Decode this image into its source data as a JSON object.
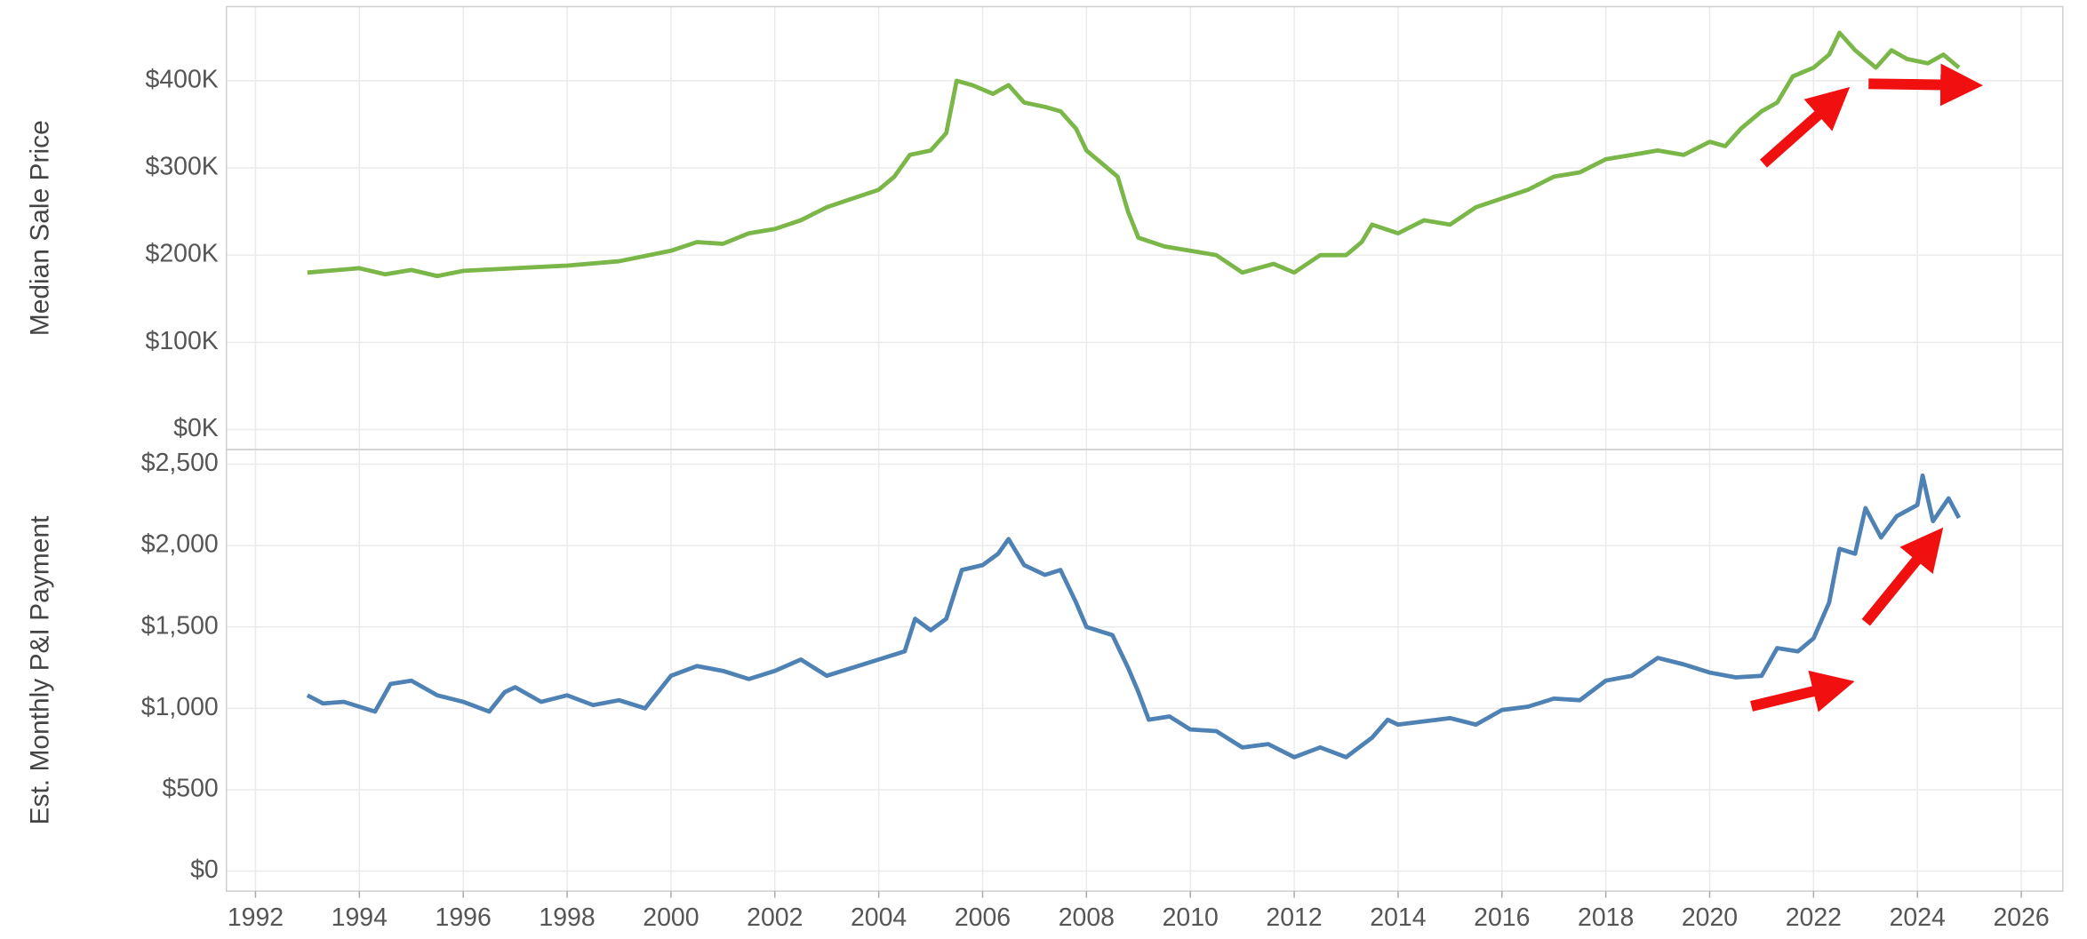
{
  "chart_data": [
    {
      "type": "line",
      "ylabel": "Median Sale Price",
      "xlim": [
        1991.44,
        2026.8
      ],
      "ylim": [
        -23000,
        485000
      ],
      "xticks": [
        1992,
        1994,
        1996,
        1998,
        2000,
        2002,
        2004,
        2006,
        2008,
        2010,
        2012,
        2014,
        2016,
        2018,
        2020,
        2022,
        2024,
        2026
      ],
      "yticks": [
        {
          "value": 0,
          "label": "$0K"
        },
        {
          "value": 100000,
          "label": "$100K"
        },
        {
          "value": 200000,
          "label": "$200K"
        },
        {
          "value": 300000,
          "label": "$300K"
        },
        {
          "value": 400000,
          "label": "$400K"
        }
      ],
      "grid": true,
      "series": [
        {
          "color": "#7ab648",
          "x": [
            1993,
            1994,
            1994.5,
            1995,
            1995.5,
            1996,
            1997,
            1998,
            1999,
            2000,
            2000.5,
            2001,
            2001.5,
            2002,
            2002.5,
            2003,
            2003.5,
            2004,
            2004.3,
            2004.6,
            2005,
            2005.3,
            2005.5,
            2005.8,
            2006.2,
            2006.5,
            2006.8,
            2007.2,
            2007.5,
            2007.8,
            2008,
            2008.3,
            2008.6,
            2008.8,
            2009,
            2009.5,
            2010,
            2010.5,
            2011,
            2011.3,
            2011.6,
            2012,
            2012.5,
            2013,
            2013.3,
            2013.5,
            2014,
            2014.5,
            2015,
            2015.5,
            2016,
            2016.5,
            2017,
            2017.5,
            2018,
            2018.5,
            2019,
            2019.5,
            2020,
            2020.3,
            2020.6,
            2021,
            2021.3,
            2021.6,
            2022,
            2022.3,
            2022.5,
            2022.8,
            2023.2,
            2023.5,
            2023.8,
            2024.2,
            2024.5,
            2024.8
          ],
          "values": [
            180000,
            185000,
            178000,
            183000,
            176000,
            182000,
            185000,
            188000,
            193000,
            205000,
            215000,
            213000,
            225000,
            230000,
            240000,
            255000,
            265000,
            275000,
            290000,
            315000,
            320000,
            340000,
            400000,
            395000,
            385000,
            395000,
            375000,
            370000,
            365000,
            345000,
            320000,
            305000,
            290000,
            250000,
            220000,
            210000,
            205000,
            200000,
            180000,
            185000,
            190000,
            180000,
            200000,
            200000,
            215000,
            235000,
            225000,
            240000,
            235000,
            255000,
            265000,
            275000,
            290000,
            295000,
            310000,
            315000,
            320000,
            315000,
            330000,
            325000,
            345000,
            365000,
            375000,
            405000,
            415000,
            430000,
            455000,
            435000,
            415000,
            435000,
            425000,
            420000,
            430000,
            415000
          ]
        }
      ]
    },
    {
      "type": "line",
      "ylabel": "Est. Monthly P&I Payment",
      "xlim": [
        1991.44,
        2026.8
      ],
      "ylim": [
        -123,
        2590
      ],
      "xticks": [
        1992,
        1994,
        1996,
        1998,
        2000,
        2002,
        2004,
        2006,
        2008,
        2010,
        2012,
        2014,
        2016,
        2018,
        2020,
        2022,
        2024,
        2026
      ],
      "yticks": [
        {
          "value": 0,
          "label": "$0"
        },
        {
          "value": 500,
          "label": "$500"
        },
        {
          "value": 1000,
          "label": "$1,000"
        },
        {
          "value": 1500,
          "label": "$1,500"
        },
        {
          "value": 2000,
          "label": "$2,000"
        },
        {
          "value": 2500,
          "label": "$2,500"
        }
      ],
      "grid": true,
      "series": [
        {
          "color": "#4e81b4",
          "x": [
            1993,
            1993.3,
            1993.7,
            1994,
            1994.3,
            1994.6,
            1995,
            1995.5,
            1996,
            1996.5,
            1996.8,
            1997,
            1997.5,
            1998,
            1998.5,
            1999,
            1999.5,
            2000,
            2000.5,
            2001,
            2001.5,
            2002,
            2002.5,
            2003,
            2003.5,
            2004,
            2004.5,
            2004.7,
            2005,
            2005.3,
            2005.6,
            2006,
            2006.3,
            2006.5,
            2006.8,
            2007.2,
            2007.5,
            2007.8,
            2008,
            2008.5,
            2008.8,
            2009,
            2009.2,
            2009.6,
            2010,
            2010.5,
            2011,
            2011.5,
            2012,
            2012.5,
            2013,
            2013.5,
            2013.8,
            2014,
            2014.5,
            2015,
            2015.5,
            2016,
            2016.5,
            2017,
            2017.5,
            2018,
            2018.5,
            2019,
            2019.5,
            2020,
            2020.5,
            2021,
            2021.3,
            2021.7,
            2022,
            2022.3,
            2022.5,
            2022.8,
            2023,
            2023.3,
            2023.6,
            2024,
            2024.1,
            2024.3,
            2024.6,
            2024.8
          ],
          "values": [
            1080,
            1030,
            1040,
            1010,
            980,
            1150,
            1170,
            1080,
            1040,
            980,
            1100,
            1130,
            1040,
            1080,
            1020,
            1050,
            1000,
            1200,
            1260,
            1230,
            1180,
            1230,
            1300,
            1200,
            1250,
            1300,
            1350,
            1550,
            1480,
            1550,
            1850,
            1880,
            1950,
            2040,
            1880,
            1820,
            1850,
            1650,
            1500,
            1450,
            1250,
            1100,
            930,
            950,
            870,
            860,
            760,
            780,
            700,
            760,
            700,
            820,
            930,
            900,
            920,
            940,
            900,
            990,
            1010,
            1060,
            1050,
            1170,
            1200,
            1310,
            1270,
            1220,
            1190,
            1200,
            1370,
            1350,
            1430,
            1650,
            1980,
            1950,
            2230,
            2050,
            2180,
            2250,
            2430,
            2150,
            2290,
            2170
          ]
        }
      ]
    }
  ]
}
